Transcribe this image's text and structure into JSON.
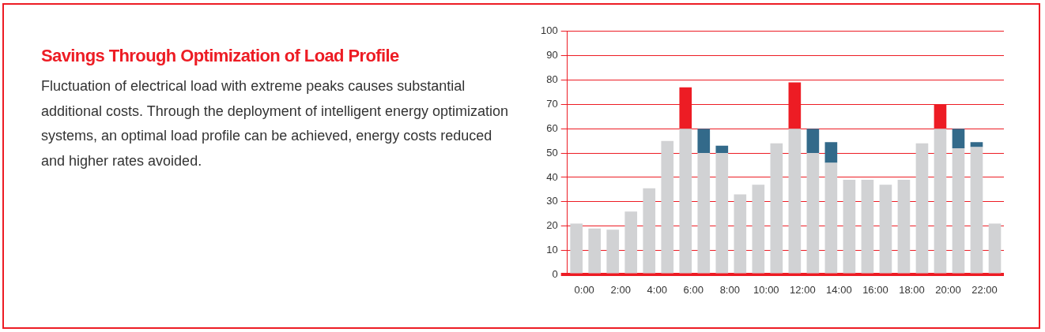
{
  "chart_data": {
    "type": "bar",
    "title": "Savings Through Optimization of Load Profile",
    "subtitle": "Fluctuation of electrical load with extreme peaks causes substantial additional costs. Through the deployment of intelligent energy optimization systems, an optimal load profile can be achieved, energy costs reduced and higher rates avoided.",
    "categories": [
      "0:00",
      null,
      "2:00",
      null,
      "4:00",
      null,
      "6:00",
      null,
      "8:00",
      null,
      "10:00",
      null,
      "12:00",
      null,
      "14:00",
      null,
      "16:00",
      null,
      "18:00",
      null,
      "20:00",
      null,
      "22:00",
      null
    ],
    "stacked": true,
    "series": [
      {
        "color": "#d1d2d4",
        "values": [
          21,
          19,
          18.5,
          26,
          35.5,
          55,
          60,
          50,
          50,
          33,
          37,
          54,
          60,
          50,
          46,
          39,
          39,
          37,
          39,
          54,
          60,
          52,
          52.5,
          21
        ]
      },
      {
        "color": "#336a8a",
        "values": [
          null,
          null,
          null,
          null,
          null,
          null,
          null,
          10,
          3,
          null,
          null,
          null,
          null,
          10,
          8.5,
          null,
          null,
          null,
          null,
          null,
          null,
          8,
          2,
          null
        ]
      },
      {
        "color": "#ed1c24",
        "values": [
          null,
          null,
          null,
          null,
          null,
          null,
          17,
          null,
          null,
          null,
          null,
          null,
          19,
          null,
          null,
          null,
          null,
          null,
          null,
          null,
          10,
          null,
          null,
          null
        ]
      }
    ],
    "ylim": [
      0,
      100
    ],
    "yticks": [
      0,
      10,
      20,
      30,
      40,
      50,
      60,
      70,
      80,
      90,
      100
    ],
    "grid": "y",
    "legend": false
  }
}
